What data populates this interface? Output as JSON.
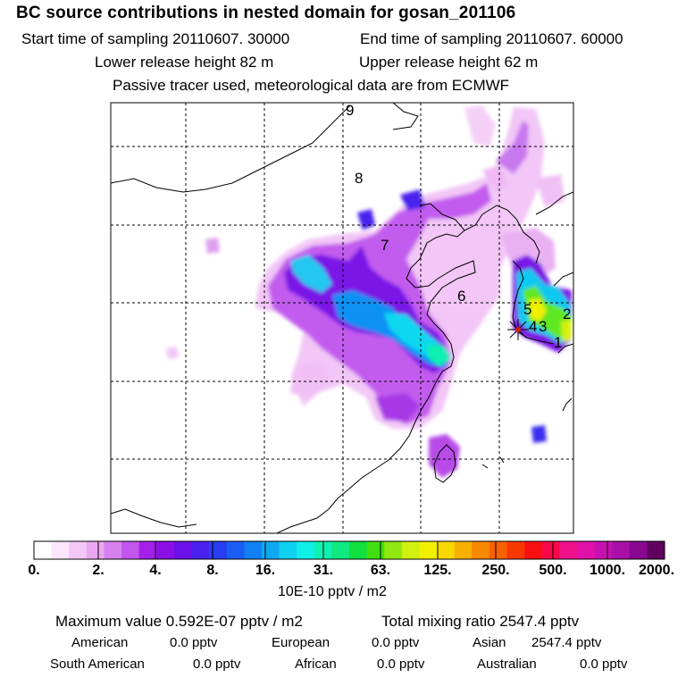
{
  "header": {
    "title": "BC  source contributions in nested domain for gosan_201106",
    "start_time": "Start time of sampling 20110607. 30000",
    "end_time": "End time of sampling 20110607. 60000",
    "lower_release": "Lower release height   82 m",
    "upper_release": "Upper release height   62 m",
    "tracer_note": "Passive tracer used, meteorological data are from ECMWF"
  },
  "map": {
    "trajectory_labels": [
      "9",
      "8",
      "7",
      "6",
      "5",
      "4",
      "3",
      "2",
      "1"
    ],
    "receptor_marker": "receptor-star"
  },
  "colorbar": {
    "ticks": [
      "0.",
      "2.",
      "4.",
      "8.",
      "16.",
      "31.",
      "63.",
      "125.",
      "250.",
      "500.",
      "1000.",
      "2000."
    ],
    "colors": [
      "#ffffff",
      "#fbe6fb",
      "#f4c8f6",
      "#eba6f2",
      "#d980f0",
      "#c155ee",
      "#a420ea",
      "#8a10e6",
      "#6a10e8",
      "#4a20ee",
      "#2a3cf2",
      "#1a5cf4",
      "#1080f4",
      "#10a8f2",
      "#10d0f0",
      "#10f0e8",
      "#10f0b0",
      "#10e880",
      "#10e040",
      "#40e010",
      "#90e810",
      "#d0f010",
      "#f0f000",
      "#f8d800",
      "#f8b000",
      "#f88800",
      "#f86000",
      "#f83800",
      "#f81010",
      "#f80848",
      "#f0108c",
      "#e010a8",
      "#c810b0",
      "#a810a8",
      "#880890",
      "#600060"
    ],
    "unit_label": "10E-10 pptv / m2"
  },
  "summary": {
    "max_value": "Maximum value  0.592E-07 pptv / m2",
    "total_mixing": "Total mixing ratio     2547.4 pptv",
    "regions": [
      {
        "name": "American",
        "value": "0.0 pptv"
      },
      {
        "name": "European",
        "value": "0.0 pptv"
      },
      {
        "name": "Asian",
        "value": "2547.4 pptv"
      },
      {
        "name": "South American",
        "value": "0.0 pptv"
      },
      {
        "name": "African",
        "value": "0.0 pptv"
      },
      {
        "name": "Australian",
        "value": "0.0 pptv"
      }
    ]
  }
}
